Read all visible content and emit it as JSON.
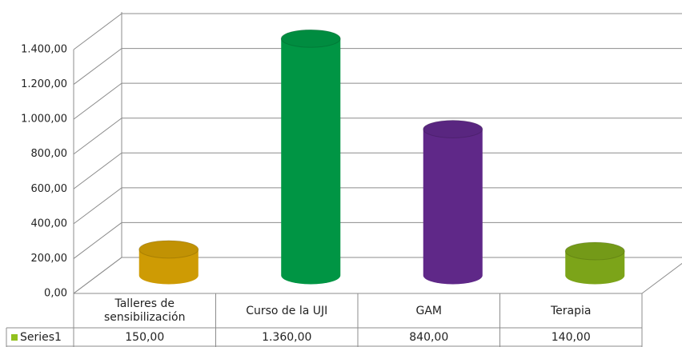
{
  "chart_data": {
    "type": "bar3d",
    "categories": [
      "Talleres de sensibilización",
      "Curso de la UJI",
      "GAM",
      "Terapia"
    ],
    "series": [
      {
        "name": "Series1",
        "color": "#92c11e",
        "colors": [
          "#f2b705",
          "#00b050",
          "#7030a0",
          "#92c11e"
        ],
        "values": [
          150,
          1360,
          840,
          140
        ],
        "value_labels": [
          "150,00",
          "1.360,00",
          "840,00",
          "140,00"
        ]
      }
    ],
    "ylim": [
      0,
      1400
    ],
    "yticks": [
      {
        "value": 0,
        "label": "0,00"
      },
      {
        "value": 200,
        "label": "200,00"
      },
      {
        "value": 400,
        "label": "400,00"
      },
      {
        "value": 600,
        "label": "600,00"
      },
      {
        "value": 800,
        "label": "800,00"
      },
      {
        "value": 1000,
        "label": "1.000,00"
      },
      {
        "value": 1200,
        "label": "1.200,00"
      },
      {
        "value": 1400,
        "label": "1.400,00"
      }
    ],
    "grid": true
  }
}
